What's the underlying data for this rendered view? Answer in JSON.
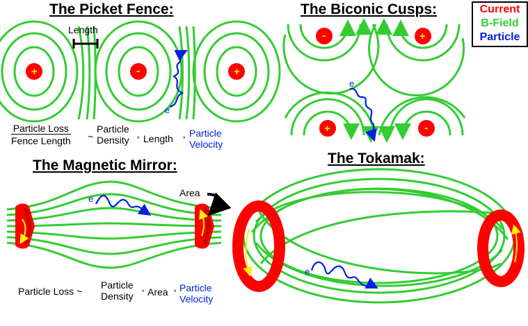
{
  "titles": {
    "picket_fence": "The Picket Fence:",
    "biconic_cusps": "The Biconic Cusps:",
    "magnetic_mirror": "The Magnetic Mirror:",
    "tokamak": "The Tokamak:"
  },
  "legend": {
    "current": "Current",
    "b_field": "B-Field",
    "particle": "Particle",
    "colors": {
      "current": "#ff0000",
      "b_field": "#33cc33",
      "particle": "#0020e0"
    }
  },
  "picket_fence": {
    "length_label": "Length",
    "charges": [
      "+",
      "-",
      "+"
    ],
    "particle_label": "e",
    "formula": {
      "numerator": "Particle Loss",
      "denominator": "Fence Length",
      "tilde": "~",
      "density_top": "Particle",
      "density_bottom": "Density",
      "times1": "*",
      "length": "Length",
      "times2": "*",
      "velocity_top": "Particle",
      "velocity_bottom": "Velocity"
    }
  },
  "biconic_cusps": {
    "charges": [
      "-",
      "+",
      "+",
      "-"
    ],
    "particle_label": "e"
  },
  "magnetic_mirror": {
    "area_label": "Area",
    "particle_label": "e",
    "formula": {
      "lhs": "Particle Loss ~",
      "density_top": "Particle",
      "density_bottom": "Density",
      "times1": "*",
      "area": "Area",
      "times2": "*",
      "velocity_top": "Particle",
      "velocity_bottom": "Velocity"
    }
  },
  "tokamak": {
    "particle_label": "e"
  }
}
